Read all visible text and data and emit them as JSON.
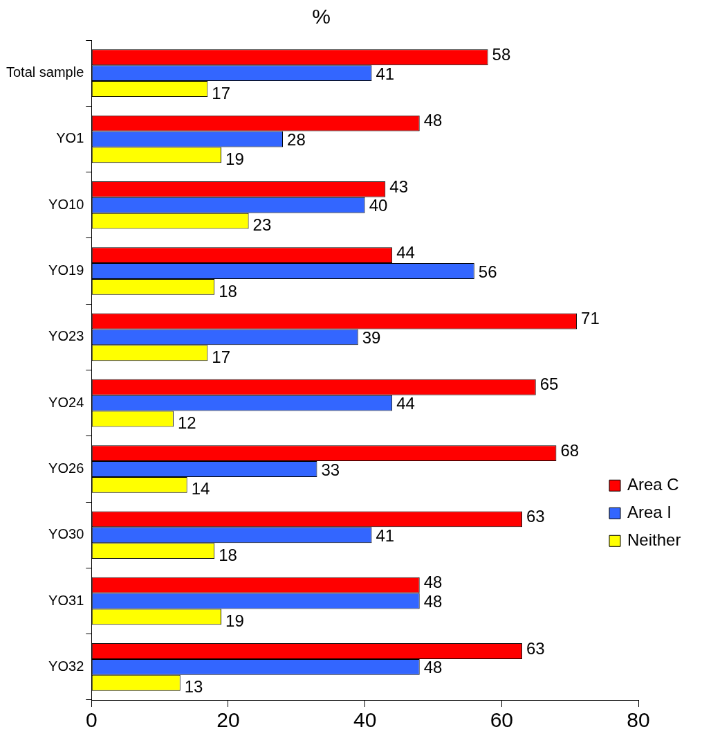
{
  "chart_data": {
    "type": "bar",
    "orientation": "horizontal",
    "title": "%",
    "categories": [
      "Total sample",
      "YO1",
      "YO10",
      "YO19",
      "YO23",
      "YO24",
      "YO26",
      "YO30",
      "YO31",
      "YO32"
    ],
    "series": [
      {
        "name": "Area C",
        "color": "#ff0000",
        "values": [
          58,
          48,
          43,
          44,
          71,
          65,
          68,
          63,
          48,
          63
        ]
      },
      {
        "name": "Area I",
        "color": "#3366ff",
        "values": [
          41,
          28,
          40,
          56,
          39,
          44,
          33,
          41,
          48,
          48
        ]
      },
      {
        "name": "Neither",
        "color": "#ffff00",
        "values": [
          17,
          19,
          23,
          18,
          17,
          12,
          14,
          18,
          19,
          13
        ]
      }
    ],
    "xlim": [
      0,
      80
    ],
    "xticks": [
      0,
      20,
      40,
      60,
      80
    ],
    "data_labels": true,
    "legend": "right",
    "grid": false
  }
}
